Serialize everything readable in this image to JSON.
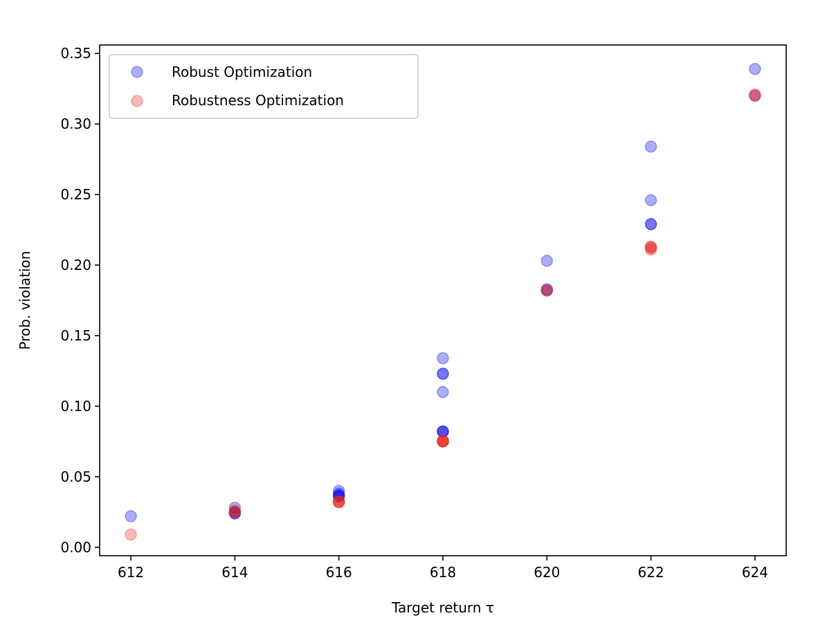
{
  "chart_data": {
    "type": "scatter",
    "title": "",
    "xlabel": "Target return τ",
    "ylabel": "Prob. violation",
    "xlim": [
      611.4,
      624.6
    ],
    "ylim": [
      -0.006,
      0.356
    ],
    "xticks": [
      612,
      614,
      616,
      618,
      620,
      622,
      624
    ],
    "xtick_labels": [
      "612",
      "614",
      "616",
      "618",
      "620",
      "622",
      "624"
    ],
    "yticks": [
      0.0,
      0.05,
      0.1,
      0.15,
      0.2,
      0.25,
      0.3,
      0.35
    ],
    "ytick_labels": [
      "0.00",
      "0.05",
      "0.10",
      "0.15",
      "0.20",
      "0.25",
      "0.30",
      "0.35"
    ],
    "grid": false,
    "legend_position": "top-left",
    "series": [
      {
        "name": "Robust Optimization",
        "color": "#0000ee",
        "opacity": 0.32,
        "points": [
          [
            612,
            0.022
          ],
          [
            614,
            0.028
          ],
          [
            614,
            0.024
          ],
          [
            614,
            0.024
          ],
          [
            614,
            0.025
          ],
          [
            616,
            0.04
          ],
          [
            616,
            0.038
          ],
          [
            616,
            0.037
          ],
          [
            616,
            0.036
          ],
          [
            616,
            0.036
          ],
          [
            618,
            0.134
          ],
          [
            618,
            0.123
          ],
          [
            618,
            0.123
          ],
          [
            618,
            0.11
          ],
          [
            618,
            0.082
          ],
          [
            618,
            0.082
          ],
          [
            618,
            0.082
          ],
          [
            620,
            0.203
          ],
          [
            620,
            0.183
          ],
          [
            620,
            0.182
          ],
          [
            622,
            0.284
          ],
          [
            622,
            0.246
          ],
          [
            622,
            0.229
          ],
          [
            622,
            0.229
          ],
          [
            624,
            0.339
          ],
          [
            624,
            0.32
          ]
        ]
      },
      {
        "name": "Robustness Optimization",
        "color": "#e8261c",
        "opacity": 0.32,
        "points": [
          [
            612,
            0.009
          ],
          [
            614,
            0.025
          ],
          [
            614,
            0.025
          ],
          [
            614,
            0.026
          ],
          [
            616,
            0.032
          ],
          [
            616,
            0.032
          ],
          [
            616,
            0.033
          ],
          [
            616,
            0.032
          ],
          [
            618,
            0.075
          ],
          [
            618,
            0.075
          ],
          [
            618,
            0.075
          ],
          [
            618,
            0.076
          ],
          [
            618,
            0.075
          ],
          [
            620,
            0.182
          ],
          [
            620,
            0.182
          ],
          [
            622,
            0.212
          ],
          [
            622,
            0.213
          ],
          [
            622,
            0.211
          ],
          [
            622,
            0.213
          ],
          [
            624,
            0.321
          ],
          [
            624,
            0.32
          ]
        ]
      }
    ]
  }
}
